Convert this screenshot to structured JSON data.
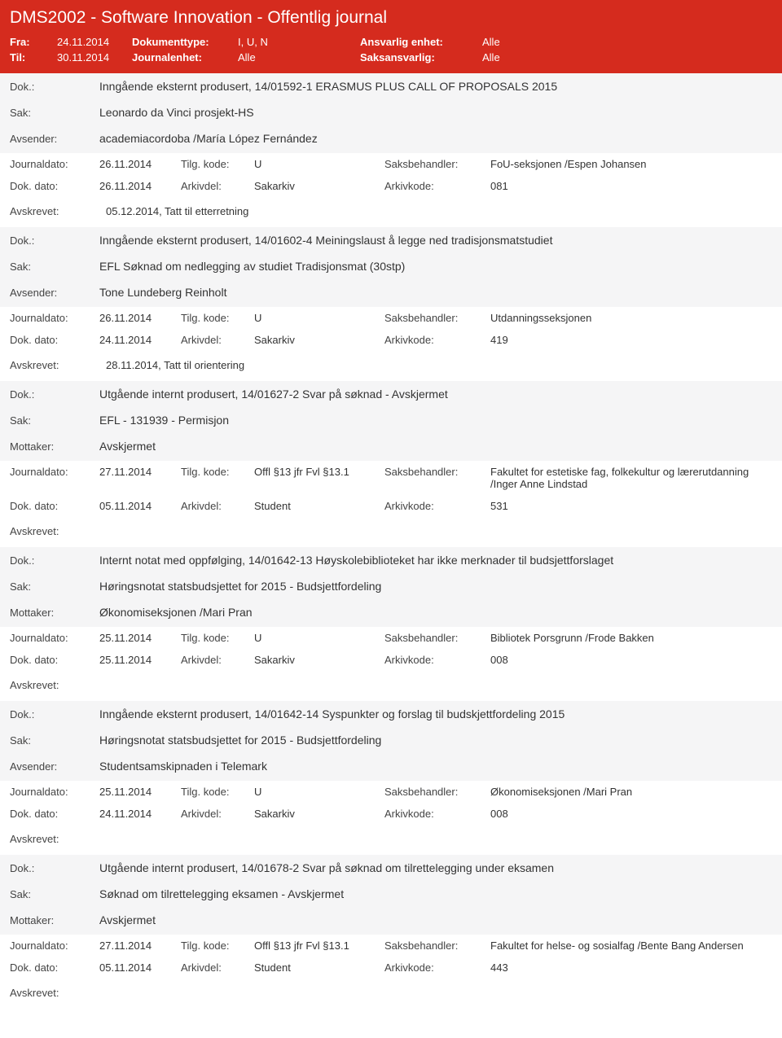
{
  "header": {
    "title": "DMS2002 - Software Innovation - Offentlig journal",
    "fra_label": "Fra:",
    "fra": "24.11.2014",
    "til_label": "Til:",
    "til": "30.11.2014",
    "doktype_label": "Dokumenttype:",
    "doktype": "I, U, N",
    "journalenhet_label": "Journalenhet:",
    "journalenhet": "Alle",
    "ansvarlig_label": "Ansvarlig enhet:",
    "ansvarlig": "Alle",
    "saksansvarlig_label": "Saksansvarlig:",
    "saksansvarlig": "Alle"
  },
  "labels": {
    "dok": "Dok.:",
    "sak": "Sak:",
    "avsender": "Avsender:",
    "mottaker": "Mottaker:",
    "journaldato": "Journaldato:",
    "tilg": "Tilg. kode:",
    "saksbehandler": "Saksbehandler:",
    "dokdato": "Dok. dato:",
    "arkivdel": "Arkivdel:",
    "arkivkode": "Arkivkode:",
    "avskrevet": "Avskrevet:"
  },
  "entries": [
    {
      "dok": "Inngående eksternt produsert, 14/01592-1 ERASMUS PLUS CALL OF PROPOSALS 2015",
      "sak": "Leonardo da Vinci prosjekt-HS",
      "party_label": "Avsender:",
      "party": "academiacordoba /María López Fernández",
      "jdato": "26.11.2014",
      "tilg": "U",
      "sb": "FoU-seksjonen /Espen Johansen",
      "ddato": "26.11.2014",
      "arkivdel": "Sakarkiv",
      "arkivkode": "081",
      "avskrevet": "05.12.2014, Tatt til etterretning"
    },
    {
      "dok": "Inngående eksternt produsert, 14/01602-4 Meiningslaust å legge ned tradisjonsmatstudiet",
      "sak": "EFL Søknad om nedlegging av studiet Tradisjonsmat (30stp)",
      "party_label": "Avsender:",
      "party": "Tone Lundeberg Reinholt",
      "jdato": "26.11.2014",
      "tilg": "U",
      "sb": "Utdanningsseksjonen",
      "ddato": "24.11.2014",
      "arkivdel": "Sakarkiv",
      "arkivkode": "419",
      "avskrevet": "28.11.2014, Tatt til orientering"
    },
    {
      "dok": "Utgående internt produsert, 14/01627-2 Svar på søknad - Avskjermet",
      "sak": "EFL - 131939  - Permisjon",
      "party_label": "Mottaker:",
      "party": "Avskjermet",
      "jdato": "27.11.2014",
      "tilg": "Offl §13 jfr Fvl §13.1",
      "sb": "Fakultet for estetiske fag, folkekultur og lærerutdanning /Inger Anne Lindstad",
      "ddato": "05.11.2014",
      "arkivdel": "Student",
      "arkivkode": "531",
      "avskrevet": ""
    },
    {
      "dok": "Internt notat med oppfølging, 14/01642-13 Høyskolebiblioteket har ikke merknader til budsjettforslaget",
      "sak": "Høringsnotat statsbudsjettet for 2015 - Budsjettfordeling",
      "party_label": "Mottaker:",
      "party": "Økonomiseksjonen /Mari Pran",
      "jdato": "25.11.2014",
      "tilg": "U",
      "sb": "Bibliotek Porsgrunn /Frode Bakken",
      "ddato": "25.11.2014",
      "arkivdel": "Sakarkiv",
      "arkivkode": "008",
      "avskrevet": ""
    },
    {
      "dok": "Inngående eksternt produsert, 14/01642-14 Syspunkter og forslag til budskjettfordeling 2015",
      "sak": "Høringsnotat statsbudsjettet for 2015 - Budsjettfordeling",
      "party_label": "Avsender:",
      "party": "Studentsamskipnaden i Telemark",
      "jdato": "25.11.2014",
      "tilg": "U",
      "sb": "Økonomiseksjonen /Mari Pran",
      "ddato": "24.11.2014",
      "arkivdel": "Sakarkiv",
      "arkivkode": "008",
      "avskrevet": ""
    },
    {
      "dok": "Utgående internt produsert, 14/01678-2 Svar på søknad om tilrettelegging under eksamen",
      "sak": "Søknad om tilrettelegging eksamen - Avskjermet",
      "party_label": "Mottaker:",
      "party": "Avskjermet",
      "jdato": "27.11.2014",
      "tilg": "Offl §13 jfr Fvl §13.1",
      "sb": "Fakultet for helse- og sosialfag /Bente Bang Andersen",
      "ddato": "05.11.2014",
      "arkivdel": "Student",
      "arkivkode": "443",
      "avskrevet": ""
    }
  ]
}
